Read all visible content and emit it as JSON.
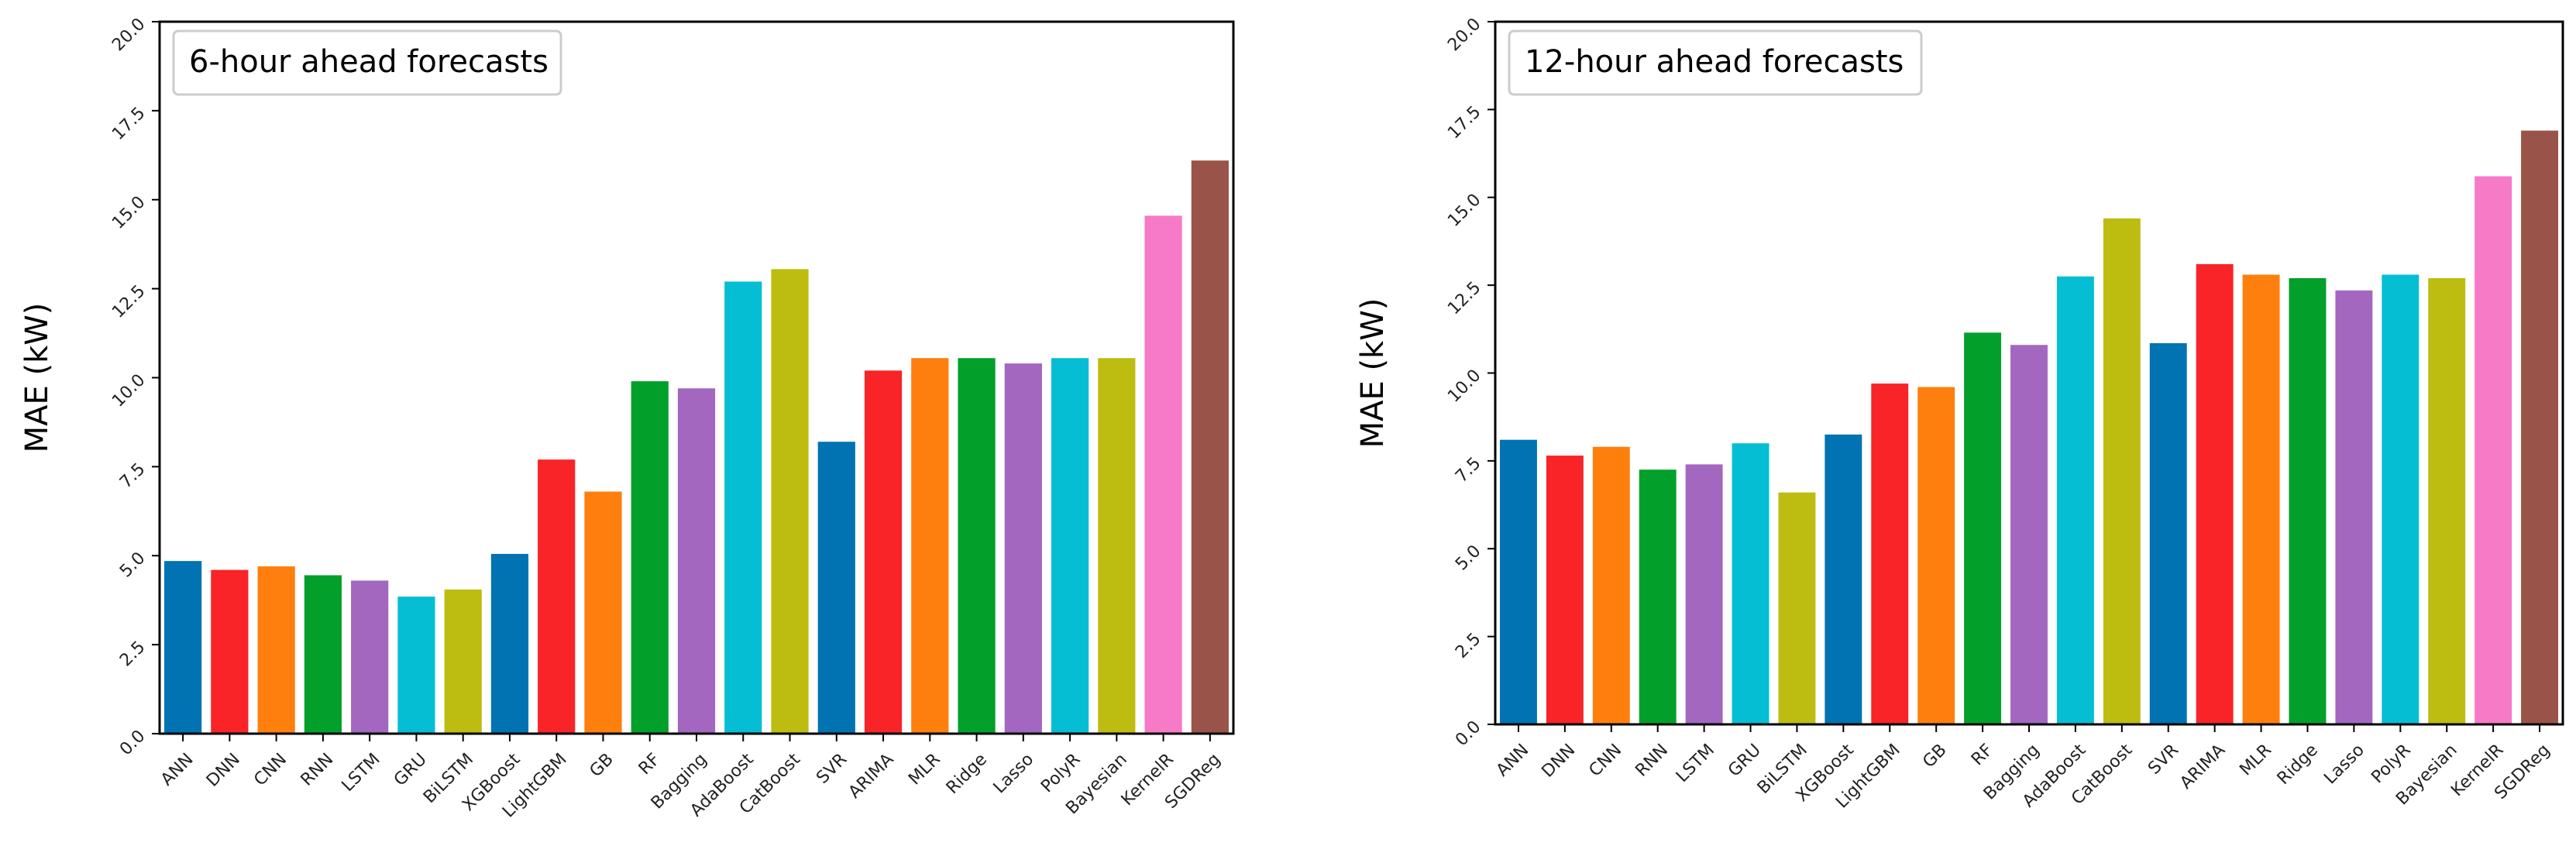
{
  "chart_data": [
    {
      "type": "bar",
      "title": "6-hour ahead forecasts",
      "xlabel": "",
      "ylabel": "MAE (kW)",
      "ylim": [
        0,
        20
      ],
      "yticks": [
        "0.0",
        "2.5",
        "5.0",
        "7.5",
        "10.0",
        "12.5",
        "15.0",
        "17.5",
        "20.0"
      ],
      "legend_position": "top-left",
      "categories": [
        "ANN",
        "DNN",
        "CNN",
        "RNN",
        "LSTM",
        "GRU",
        "BiLSTM",
        "XGBoost",
        "LightGBM",
        "GB",
        "RF",
        "Bagging",
        "AdaBoost",
        "CatBoost",
        "SVR",
        "ARIMA",
        "MLR",
        "Ridge",
        "Lasso",
        "PolyR",
        "Bayesian",
        "KernelR",
        "SGDReg"
      ],
      "values": [
        4.85,
        4.6,
        4.7,
        4.45,
        4.3,
        3.85,
        4.05,
        5.05,
        7.7,
        6.8,
        9.9,
        9.7,
        12.7,
        13.05,
        8.2,
        10.2,
        10.55,
        10.55,
        10.4,
        10.55,
        10.55,
        14.55,
        16.1
      ]
    },
    {
      "type": "bar",
      "title": "12-hour ahead forecasts",
      "xlabel": "",
      "ylabel": "MAE (kW)",
      "ylim": [
        0,
        20
      ],
      "yticks": [
        "0.0",
        "2.5",
        "5.0",
        "7.5",
        "10.0",
        "12.5",
        "15.0",
        "17.5",
        "20.0"
      ],
      "legend_position": "top-left",
      "categories": [
        "ANN",
        "DNN",
        "CNN",
        "RNN",
        "LSTM",
        "GRU",
        "BiLSTM",
        "XGBoost",
        "LightGBM",
        "GB",
        "RF",
        "Bagging",
        "AdaBoost",
        "CatBoost",
        "SVR",
        "ARIMA",
        "MLR",
        "Ridge",
        "Lasso",
        "PolyR",
        "Bayesian",
        "KernelR",
        "SGDReg"
      ],
      "values": [
        8.1,
        7.65,
        7.9,
        7.25,
        7.4,
        8.0,
        6.6,
        8.25,
        9.7,
        9.6,
        11.15,
        10.8,
        12.75,
        14.4,
        10.85,
        13.1,
        12.8,
        12.7,
        12.35,
        12.8,
        12.7,
        15.6,
        16.9
      ]
    }
  ],
  "palette": [
    "#0173b2",
    "#f82427",
    "#ff7f0e",
    "#02a02b",
    "#a367c0",
    "#06bed3",
    "#bdbd11",
    "#0173b2",
    "#f82427",
    "#ff7f0e",
    "#02a02b",
    "#a367c0",
    "#06bed3",
    "#bdbd11",
    "#0173b2",
    "#f82427",
    "#ff7f0e",
    "#02a02b",
    "#a367c0",
    "#06bed3",
    "#bdbd11",
    "#f77ac6",
    "#9a5348"
  ]
}
